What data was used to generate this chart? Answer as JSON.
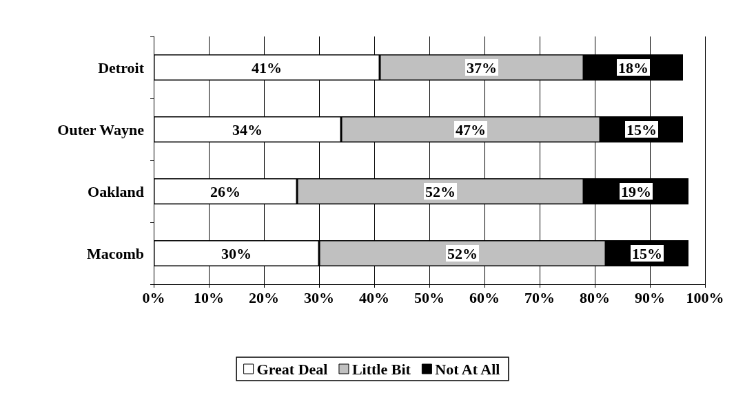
{
  "chart_data": {
    "type": "bar",
    "orientation": "horizontal",
    "stacked": true,
    "categories": [
      "Detroit",
      "Outer Wayne",
      "Oakland",
      "Macomb"
    ],
    "series": [
      {
        "name": "Great Deal",
        "color": "#ffffff",
        "values": [
          41,
          34,
          26,
          30
        ],
        "value_labels": [
          "41%",
          "34%",
          "26%",
          "30%"
        ]
      },
      {
        "name": "Little Bit",
        "color": "#c0c0c0",
        "values": [
          37,
          47,
          52,
          52
        ],
        "value_labels": [
          "37%",
          "47%",
          "52%",
          "52%"
        ]
      },
      {
        "name": "Not At All",
        "color": "#000000",
        "values": [
          18,
          15,
          19,
          15
        ],
        "value_labels": [
          "18%",
          "15%",
          "19%",
          "15%"
        ]
      }
    ],
    "xlim": [
      0,
      100
    ],
    "xticks": [
      {
        "value": 0,
        "label": "0%"
      },
      {
        "value": 10,
        "label": "10%"
      },
      {
        "value": 20,
        "label": "20%"
      },
      {
        "value": 30,
        "label": "30%"
      },
      {
        "value": 40,
        "label": "40%"
      },
      {
        "value": 50,
        "label": "50%"
      },
      {
        "value": 60,
        "label": "60%"
      },
      {
        "value": 70,
        "label": "70%"
      },
      {
        "value": 80,
        "label": "80%"
      },
      {
        "value": 90,
        "label": "90%"
      },
      {
        "value": 100,
        "label": "100%"
      }
    ],
    "grid": "x",
    "legend": "bottom"
  }
}
